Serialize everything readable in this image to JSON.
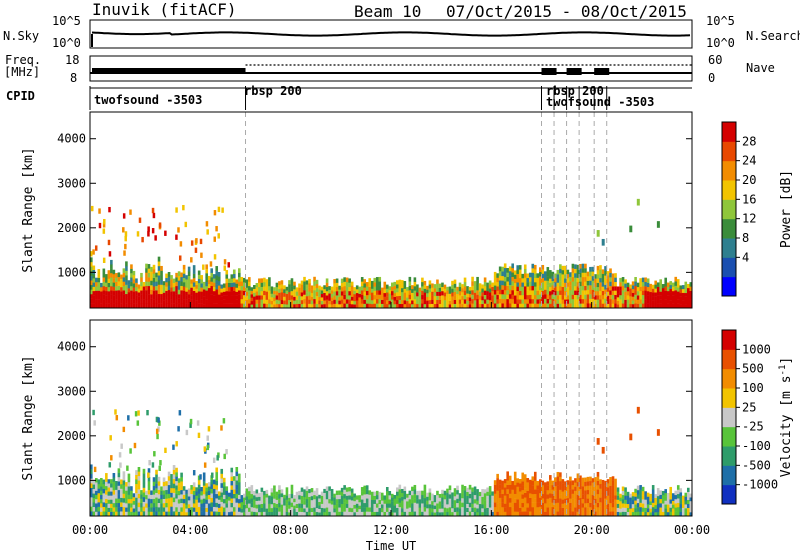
{
  "header": {
    "station": "Inuvik (fitACF)",
    "beam": "Beam 10",
    "date_range": "07/Oct/2015 - 08/Oct/2015"
  },
  "side_labels": {
    "nsky": "N.Sky",
    "nsearch": "N.Search",
    "freq": "Freq.",
    "freq_unit": "[MHz]",
    "nave": "Nave",
    "cpid": "CPID"
  },
  "scales": {
    "nsky_ticks": [
      "10^5",
      "10^0"
    ],
    "nsearch_ticks": [
      "10^5",
      "10^0"
    ],
    "freq_ticks": [
      "18",
      "8"
    ],
    "nave_ticks": [
      "60",
      "0"
    ]
  },
  "cpid_labels": [
    "twofsound -3503",
    "rbsp 200",
    "rbsp 200",
    "twofsound -3503"
  ],
  "chart_data": [
    {
      "type": "heatmap",
      "title": "",
      "xlabel": "Time UT",
      "ylabel": "Slant Range [km]",
      "x_ticks": [
        "00:00",
        "04:00",
        "08:00",
        "12:00",
        "16:00",
        "20:00",
        "00:00"
      ],
      "xlim_hours": [
        0,
        24
      ],
      "ylim": [
        200,
        4600
      ],
      "y_ticks": [
        1000,
        2000,
        3000,
        4000
      ],
      "colorbar": {
        "label": "Power [dB]",
        "ticks": [
          "28",
          "24",
          "20",
          "16",
          "12",
          "8",
          "4"
        ],
        "colors": [
          "#0000ff",
          "#1a4fb0",
          "#2e7f8f",
          "#3a8c3a",
          "#8fc63a",
          "#f2c400",
          "#f28c00",
          "#e84800",
          "#d40000"
        ]
      }
    },
    {
      "type": "heatmap",
      "title": "",
      "xlabel": "Time UT",
      "ylabel": "Slant Range [km]",
      "x_ticks": [
        "00:00",
        "04:00",
        "08:00",
        "12:00",
        "16:00",
        "20:00",
        "00:00"
      ],
      "xlim_hours": [
        0,
        24
      ],
      "ylim": [
        200,
        4600
      ],
      "y_ticks": [
        1000,
        2000,
        3000,
        4000
      ],
      "colorbar": {
        "label": "Velocity [m s^-1]",
        "ticks": [
          "1000",
          "500",
          "100",
          "25",
          "-25",
          "-100",
          "-500",
          "-1000"
        ],
        "colors": [
          "#1030c0",
          "#1e6fa8",
          "#2e9c6a",
          "#58c43a",
          "#c8c8c8",
          "#f2c400",
          "#f28c00",
          "#e85000",
          "#d40000"
        ]
      }
    }
  ]
}
